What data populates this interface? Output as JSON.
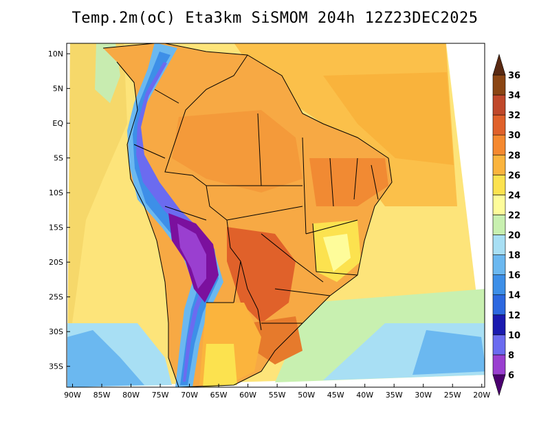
{
  "title": "Temp.2m(oC) Eta3km SiSMOM 204h 12Z23DEC2025",
  "map": {
    "variable": "2 m air temperature",
    "units": "oC",
    "model": "Eta3km SiSMOM",
    "forecast_hour": "204h",
    "init_time": "12Z23DEC2025",
    "lat_labels": [
      "10N",
      "5N",
      "EQ",
      "5S",
      "10S",
      "15S",
      "20S",
      "25S",
      "30S",
      "35S"
    ],
    "lon_labels": [
      "90W",
      "85W",
      "80W",
      "75W",
      "70W",
      "65W",
      "60W",
      "55W",
      "50W",
      "45W",
      "40W",
      "35W",
      "30W",
      "25W",
      "20W"
    ],
    "lat_values": [
      10,
      5,
      0,
      -5,
      -10,
      -15,
      -20,
      -25,
      -30,
      -35
    ],
    "lon_values": [
      -90,
      -85,
      -80,
      -75,
      -70,
      -65,
      -60,
      -55,
      -50,
      -45,
      -40,
      -35,
      -30,
      -25,
      -20
    ],
    "lat_range": [
      -38,
      11.5
    ],
    "lon_range": [
      -91,
      -19.5
    ]
  },
  "colorbar": {
    "levels": [
      6,
      8,
      10,
      12,
      14,
      16,
      18,
      20,
      22,
      24,
      26,
      28,
      30,
      32,
      34,
      36
    ],
    "labels": [
      "6",
      "8",
      "10",
      "12",
      "14",
      "16",
      "18",
      "20",
      "22",
      "24",
      "26",
      "28",
      "30",
      "32",
      "34",
      "36"
    ],
    "colors": [
      "#7b109e",
      "#9a3fd0",
      "#6b6bf0",
      "#1a1ab0",
      "#2c68e0",
      "#3d8fe8",
      "#6bb8f0",
      "#a8dff4",
      "#c8f0b0",
      "#fefc9a",
      "#fce24f",
      "#fbb43d",
      "#f5892f",
      "#e0612a",
      "#c0482a",
      "#8b4513",
      "#602010"
    ],
    "under_color": "#4b0070",
    "over_color": "#5a2a12"
  }
}
